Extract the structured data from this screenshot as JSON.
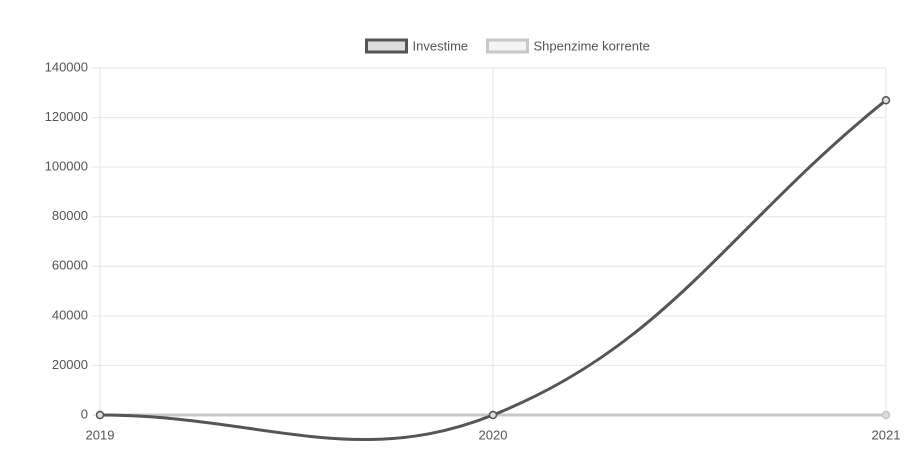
{
  "chart_data": {
    "type": "line",
    "categories": [
      "2019",
      "2020",
      "2021"
    ],
    "series": [
      {
        "name": "Investime",
        "color": "#555555",
        "values": [
          0,
          0,
          127000
        ]
      },
      {
        "name": "Shpenzime korrente",
        "color": "#c8c8c8",
        "values": [
          0,
          0,
          0
        ]
      }
    ],
    "ylim": [
      0,
      140000
    ],
    "yticks": [
      0,
      20000,
      40000,
      60000,
      80000,
      100000,
      120000,
      140000
    ],
    "grid": true,
    "legend": "top"
  }
}
